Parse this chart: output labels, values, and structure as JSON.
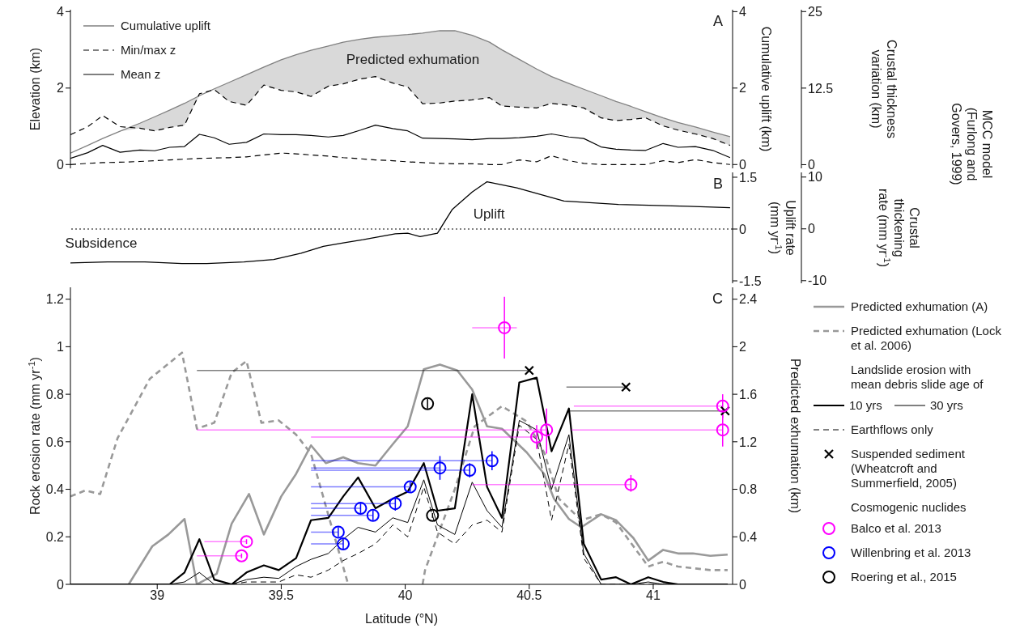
{
  "chart_data": [
    {
      "type": "line",
      "title": "A",
      "ylabel": "Elevation (km)",
      "y2label": "Cumulative uplift (km)",
      "y3label": "Crustal thickness variation (km)",
      "xlim": [
        38.65,
        41.32
      ],
      "xticks": [
        39,
        39.5,
        40,
        40.5,
        41
      ],
      "ylim": [
        -0.1,
        4.05
      ],
      "yticks": [
        0,
        2,
        4
      ],
      "y2lim": [
        -0.1,
        4.05
      ],
      "y2ticks": [
        0,
        2,
        4
      ],
      "y3lim": [
        -0.6,
        25.3
      ],
      "y3ticks": [
        0,
        12.5,
        25
      ],
      "tick_labels": "y",
      "legend": "top left",
      "annotations": [
        "Predicted exhumation",
        "MCC model (Furlong and Govers, 1999)"
      ],
      "x": [
        38.65,
        38.72,
        38.78,
        38.85,
        38.93,
        38.99,
        39.05,
        39.11,
        39.17,
        39.23,
        39.29,
        39.36,
        39.43,
        39.5,
        39.56,
        39.62,
        39.69,
        39.75,
        39.82,
        39.88,
        39.95,
        40.01,
        40.07,
        40.14,
        40.2,
        40.27,
        40.34,
        40.39,
        40.46,
        40.53,
        40.59,
        40.66,
        40.72,
        40.79,
        40.85,
        40.91,
        40.97,
        41.04,
        41.1,
        41.17,
        41.24,
        41.31
      ],
      "series": [
        {
          "name": "Cumulative uplift",
          "color": "#808080",
          "axis": "y2",
          "values": [
            0.3,
            0.5,
            0.68,
            0.87,
            1.08,
            1.25,
            1.42,
            1.6,
            1.8,
            1.98,
            2.15,
            2.35,
            2.55,
            2.74,
            2.87,
            2.99,
            3.1,
            3.2,
            3.28,
            3.33,
            3.37,
            3.4,
            3.44,
            3.5,
            3.5,
            3.38,
            3.2,
            3.0,
            2.75,
            2.5,
            2.3,
            2.12,
            1.97,
            1.8,
            1.65,
            1.52,
            1.38,
            1.22,
            1.1,
            0.98,
            0.85,
            0.73
          ],
          "lower": [
            0.3,
            0.5,
            0.68,
            0.87,
            0.95,
            0.88,
            0.97,
            1.03,
            1.8,
            1.96,
            1.65,
            1.55,
            2.08,
            1.94,
            1.9,
            1.78,
            2.05,
            2.11,
            2.24,
            2.3,
            2.13,
            2.03,
            1.59,
            1.61,
            1.66,
            1.69,
            1.75,
            1.53,
            1.5,
            1.48,
            1.6,
            1.55,
            1.48,
            1.22,
            1.15,
            1.18,
            1.22,
            1.01,
            0.9,
            0.8,
            0.68,
            0.5
          ],
          "upper": [
            0.3,
            0.5,
            0.68,
            0.87,
            1.08,
            1.25,
            1.42,
            1.6,
            1.8,
            1.98,
            2.15,
            2.35,
            2.55,
            2.74,
            2.87,
            2.99,
            3.1,
            3.2,
            3.28,
            3.33,
            3.37,
            3.4,
            3.44,
            3.5,
            3.5,
            3.38,
            3.2,
            3.0,
            2.75,
            2.5,
            2.3,
            2.12,
            1.97,
            1.8,
            1.65,
            1.52,
            1.38,
            1.22,
            1.1,
            0.98,
            0.85,
            0.73
          ]
        },
        {
          "name": "Min/max z",
          "color": "#000000",
          "line_style": "dashed",
          "values": [
            0.78,
            0.99,
            1.28,
            0.99,
            0.95,
            0.88,
            0.97,
            1.03,
            1.85,
            1.96,
            1.65,
            1.55,
            2.08,
            1.94,
            1.9,
            1.78,
            2.05,
            2.11,
            2.24,
            2.3,
            2.13,
            2.03,
            1.59,
            1.61,
            1.66,
            1.69,
            1.75,
            1.53,
            1.5,
            1.48,
            1.6,
            1.55,
            1.48,
            1.22,
            1.15,
            1.18,
            1.22,
            1.01,
            0.9,
            0.8,
            0.68,
            0.5
          ]
        },
        {
          "color": "#000000",
          "line_style": "dashed",
          "values": [
            0.0,
            0.03,
            0.05,
            0.06,
            0.08,
            0.1,
            0.12,
            0.14,
            0.16,
            0.17,
            0.18,
            0.2,
            0.25,
            0.3,
            0.28,
            0.25,
            0.22,
            0.18,
            0.15,
            0.12,
            0.1,
            0.07,
            0.05,
            0.03,
            0.02,
            0.02,
            0.0,
            0.0,
            0.12,
            0.07,
            0.23,
            0.1,
            0.03,
            0.0,
            0.0,
            0.0,
            0.0,
            0.1,
            0.05,
            0.13,
            0.05,
            0.0
          ]
        },
        {
          "name": "Mean z",
          "color": "#000000",
          "values": [
            0.16,
            0.31,
            0.5,
            0.32,
            0.38,
            0.36,
            0.45,
            0.47,
            0.79,
            0.7,
            0.53,
            0.58,
            0.8,
            0.78,
            0.78,
            0.76,
            0.72,
            0.76,
            0.9,
            1.03,
            0.94,
            0.88,
            0.69,
            0.68,
            0.67,
            0.65,
            0.68,
            0.68,
            0.7,
            0.74,
            0.8,
            0.72,
            0.68,
            0.46,
            0.4,
            0.38,
            0.37,
            0.55,
            0.45,
            0.47,
            0.37,
            0.18
          ]
        }
      ]
    },
    {
      "type": "line",
      "title": "B",
      "y2label": "Uplift rate (mm yr$^{-1}$)",
      "y3label": "Crustal thickening rate (mm yr$^{-1}$)",
      "xlim": [
        38.65,
        41.32
      ],
      "xticks": [
        39,
        39.5,
        40,
        40.5,
        41
      ],
      "y2lim": [
        -1.57,
        1.64
      ],
      "y2ticks": [
        -1.5,
        0,
        1.5
      ],
      "y3lim": [
        -10.5,
        10.9
      ],
      "y3ticks": [
        -10,
        0,
        10
      ],
      "tick_labels": "y",
      "annotations": [
        "Uplift",
        "Subsidence"
      ],
      "ref_lines": [
        {
          "axis": "y2",
          "value": 0,
          "line_style": "dotted"
        }
      ],
      "x": [
        38.65,
        38.8,
        38.95,
        39.1,
        39.2,
        39.35,
        39.47,
        39.58,
        39.67,
        39.75,
        39.83,
        39.96,
        40.01,
        40.06,
        40.13,
        40.19,
        40.27,
        40.33,
        40.45,
        40.64,
        40.86,
        41.14,
        41.31
      ],
      "series": [
        {
          "color": "#000000",
          "axis": "y2",
          "values": [
            -0.98,
            -0.95,
            -0.95,
            -1.0,
            -1.0,
            -0.95,
            -0.88,
            -0.7,
            -0.5,
            -0.4,
            -0.31,
            -0.14,
            -0.12,
            -0.22,
            -0.12,
            0.57,
            1.07,
            1.37,
            1.19,
            0.81,
            0.71,
            0.66,
            0.62
          ]
        }
      ]
    },
    {
      "type": "line",
      "title": "C",
      "xlabel": "Latitude (°N)",
      "ylabel": "Rock erosion rate (mm yr$^{-1}$)",
      "y2label": "Predicted exhumation (km)",
      "xlim": [
        38.65,
        41.32
      ],
      "xticks": [
        39,
        39.5,
        40,
        40.5,
        41
      ],
      "ylim": [
        0,
        1.25
      ],
      "yticks": [
        0,
        0.2,
        0.4,
        0.6,
        0.8,
        1,
        1.2
      ],
      "y2lim": [
        0,
        2.5
      ],
      "y2ticks": [
        0,
        0.4,
        0.8,
        1.2,
        1.6,
        2,
        2.4
      ],
      "legend": "right",
      "annotations": [
        "Landslide erosion with mean debris slide age of",
        "Cosmogenic nuclides"
      ],
      "x": [
        38.65,
        38.885,
        39.05,
        39.11,
        39.17,
        39.23,
        39.3,
        39.36,
        39.43,
        39.49,
        39.56,
        39.62,
        39.69,
        39.75,
        39.81,
        39.88,
        39.95,
        40.01,
        40.075,
        40.13,
        40.2,
        40.27,
        40.33,
        40.39,
        40.46,
        40.53,
        40.59,
        40.66,
        40.72,
        40.79,
        40.85,
        40.91,
        40.98,
        41.04,
        41.1,
        41.3
      ],
      "series": [
        {
          "name": "Predicted exhumation (A)",
          "color": "#999999",
          "axis": "y2",
          "x": [
            38.885,
            38.98,
            39.045,
            39.11,
            39.16,
            39.24,
            39.3,
            39.37,
            39.43,
            39.5,
            39.56,
            39.62,
            39.68,
            39.75,
            39.81,
            39.88,
            39.95,
            40.01,
            40.075,
            40.14,
            40.21,
            40.27,
            40.33,
            40.39,
            40.49,
            40.56,
            40.6,
            40.66,
            40.71,
            40.79,
            40.85,
            40.92,
            40.98,
            41.04,
            41.1,
            41.16,
            41.23,
            41.3
          ],
          "values": [
            0,
            0.32,
            0.42,
            0.55,
            0,
            0.09,
            0.51,
            0.76,
            0.42,
            0.74,
            0.93,
            1.17,
            1.02,
            1.07,
            1.02,
            1.0,
            1.18,
            1.33,
            1.81,
            1.85,
            1.8,
            1.64,
            1.33,
            1.31,
            1.11,
            0.93,
            0.72,
            0.55,
            0.48,
            0.59,
            0.54,
            0.39,
            0.2,
            0.29,
            0.26,
            0.26,
            0.24,
            0.25
          ]
        },
        {
          "name": "Predicted exhumation (Lock et al. 2006)",
          "color": "#999999",
          "axis": "y2",
          "line_style": "dashed",
          "x": [
            38.65,
            38.71,
            38.77,
            38.84,
            38.97,
            39.1,
            39.16,
            39.23,
            39.3,
            39.36,
            39.42,
            39.49,
            39.56,
            39.62,
            39.7,
            39.77,
            39.9,
            40.07,
            40.08,
            40.2,
            40.28,
            40.39,
            40.49,
            40.56,
            40.62,
            40.71,
            40.79,
            40.85,
            40.98,
            41.04,
            41.1,
            41.23,
            41.3
          ],
          "values": [
            0.74,
            0.79,
            0.76,
            1.23,
            1.73,
            1.95,
            1.31,
            1.36,
            1.78,
            1.88,
            1.36,
            1.38,
            1.26,
            1.1,
            0.51,
            0,
            null,
            0,
            0.12,
            0.8,
            1.33,
            1.5,
            1.37,
            1.11,
            0.72,
            0.54,
            0.59,
            0.52,
            0.15,
            0.19,
            0.15,
            0.12,
            0.12
          ]
        },
        {
          "name": "10 yrs",
          "color": "#000000",
          "values": [
            0,
            0,
            0,
            0.05,
            0.19,
            0.02,
            0,
            0.05,
            0.08,
            0.06,
            0.11,
            0.27,
            0.28,
            0.37,
            0.45,
            0.32,
            0.36,
            0.39,
            0.51,
            0.31,
            0.32,
            0.8,
            0.41,
            0.28,
            0.85,
            0.87,
            0.56,
            0.74,
            0.17,
            0.02,
            0.03,
            0,
            0.03,
            0.01,
            0,
            0
          ]
        },
        {
          "name": "30 yrs",
          "color": "#000000",
          "values": [
            0,
            0,
            0,
            0.01,
            0.05,
            0,
            0,
            0.02,
            0.03,
            0.025,
            0.075,
            0.105,
            0.13,
            0.19,
            0.24,
            0.22,
            0.28,
            0.26,
            0.44,
            0.25,
            0.21,
            0.43,
            0.31,
            0.24,
            0.69,
            0.65,
            0.4,
            0.63,
            0.13,
            0,
            0,
            0,
            0.01,
            0,
            0,
            0
          ]
        },
        {
          "name": "Earthflows only",
          "color": "#000000",
          "line_style": "dashed",
          "x": [
            39.3,
            39.36,
            39.49,
            39.56,
            39.62,
            39.69,
            39.75,
            39.81,
            39.88,
            39.95,
            40.01,
            40.075,
            40.13,
            40.2,
            40.27,
            40.33,
            40.39,
            40.46,
            40.53,
            40.59,
            40.66,
            40.72,
            40.79,
            40.91,
            41.04,
            41.3
          ],
          "values": [
            0,
            0.01,
            0.01,
            0.04,
            0.03,
            0.06,
            0.1,
            0.13,
            0.17,
            0.25,
            0.2,
            0.41,
            0.22,
            0.17,
            0.25,
            0.27,
            0.22,
            0.67,
            0.61,
            0.27,
            0.59,
            0.11,
            0,
            0,
            0,
            0
          ]
        },
        {
          "name": "Suspended sediment (Wheatcroft and Summerfield, 2005)",
          "type": "scatter",
          "marker": "cross",
          "color": "#000000",
          "x": [
            40.5,
            40.89,
            41.29
          ],
          "values": [
            0.9,
            0.83,
            0.73
          ],
          "xerrors": [
            [
              39.16,
              40.5
            ],
            [
              40.65,
              40.89
            ],
            [
              40.66,
              41.29
            ]
          ]
        },
        {
          "name": "Balco et al. 2013",
          "type": "scatter",
          "marker": "circle",
          "color": "#ff00ff",
          "x": [
            39.36,
            39.34,
            40.4,
            40.53,
            40.57,
            40.91,
            41.28,
            41.28
          ],
          "values": [
            0.18,
            0.12,
            1.08,
            0.62,
            0.65,
            0.42,
            0.75,
            0.65
          ],
          "errors": [
            0.01,
            0.01,
            [
              0.95,
              1.21
            ],
            [
              0.57,
              0.67
            ],
            [
              0.55,
              0.74
            ],
            [
              0.39,
              0.46
            ],
            [
              0.7,
              0.8
            ],
            [
              0.58,
              0.74
            ]
          ],
          "xerrors": [
            [
              39.19,
              39.36
            ],
            [
              39.16,
              39.34
            ],
            [
              40.27,
              40.45
            ],
            [
              39.62,
              40.53
            ],
            [
              39.16,
              40.57
            ],
            [
              40.27,
              40.91
            ],
            [
              40.68,
              41.28
            ],
            [
              40.67,
              41.28
            ]
          ]
        },
        {
          "name": "Willenbring et al. 2013",
          "type": "scatter",
          "marker": "circle",
          "color": "#0000ff",
          "x": [
            39.73,
            39.75,
            39.82,
            39.87,
            39.96,
            40.02,
            40.14,
            40.26,
            40.35
          ],
          "values": [
            0.22,
            0.17,
            0.32,
            0.29,
            0.34,
            0.41,
            0.49,
            0.48,
            0.52
          ],
          "errors": [
            0.02,
            0.02,
            0.02,
            0.02,
            0.03,
            0.02,
            0.05,
            0.03,
            0.04
          ],
          "xerrors": [
            [
              39.62,
              39.73
            ],
            [
              39.62,
              39.75
            ],
            [
              39.62,
              39.82
            ],
            [
              39.62,
              39.87
            ],
            [
              39.62,
              39.96
            ],
            [
              39.62,
              40.02
            ],
            [
              39.62,
              40.14
            ],
            [
              39.62,
              40.26
            ],
            [
              39.62,
              40.35
            ]
          ]
        },
        {
          "name": "Roering et al., 2015",
          "type": "scatter",
          "marker": "circle",
          "color": "#000000",
          "x": [
            40.09,
            40.11
          ],
          "values": [
            0.76,
            0.29
          ],
          "errors": [
            0.02,
            0.01
          ]
        }
      ]
    }
  ]
}
